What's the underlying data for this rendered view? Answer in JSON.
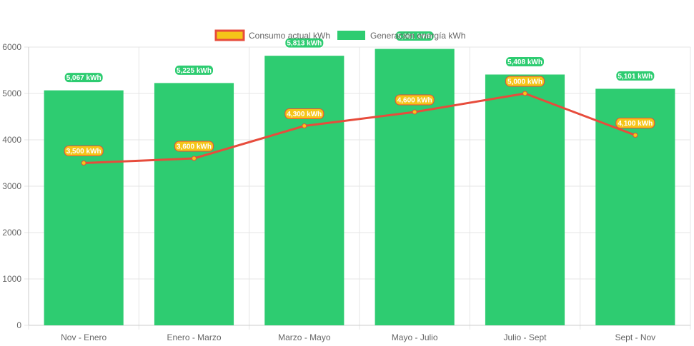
{
  "chart_data": {
    "type": "bar",
    "categories": [
      "Nov - Enero",
      "Enero - Marzo",
      "Marzo - Mayo",
      "Mayo - Julio",
      "Julio - Sept",
      "Sept - Nov"
    ],
    "series": [
      {
        "name": "Consumo actual kWh",
        "type": "line",
        "values": [
          3500,
          3600,
          4300,
          4600,
          5000,
          4100
        ],
        "labels": [
          "3,500 kWh",
          "3,600 kWh",
          "4,300 kWh",
          "4,600 kWh",
          "5,000 kWh",
          "4,100 kWh"
        ],
        "color": "#e74c3c",
        "fill": "#f5c518"
      },
      {
        "name": "Generación energía kWh",
        "type": "bar",
        "values": [
          5067,
          5225,
          5813,
          5961,
          5408,
          5101
        ],
        "labels": [
          "5,067 kWh",
          "5,225 kWh",
          "5,813 kWh",
          "5,961 kWh",
          "5,408 kWh",
          "5,101 kWh"
        ],
        "color": "#2ecc71"
      }
    ],
    "ylim": [
      0,
      6000
    ],
    "yticks": [
      "0",
      "1000",
      "2000",
      "3000",
      "4000",
      "5000",
      "6000"
    ],
    "ytick_values": [
      0,
      1000,
      2000,
      3000,
      4000,
      5000,
      6000
    ],
    "grid": true,
    "legend_position": "top-center",
    "title": "",
    "xlabel": "",
    "ylabel": ""
  }
}
